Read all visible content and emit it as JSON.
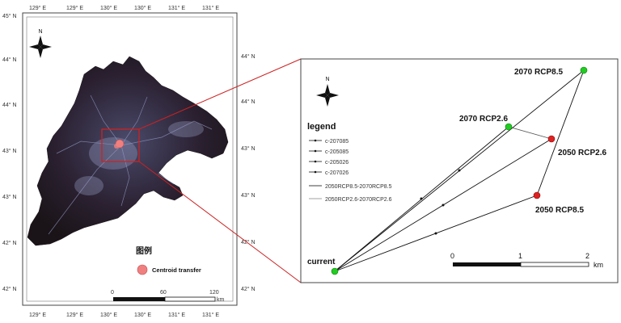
{
  "left_map": {
    "lon_top": [
      "129° E",
      "129° E",
      "130° E",
      "130° E",
      "131° E",
      "131° E"
    ],
    "lon_bottom": [
      "129° E",
      "129° E",
      "130° E",
      "130° E",
      "131° E",
      "131° E"
    ],
    "lat_left": [
      "45° N",
      "44° N",
      "44° N",
      "43° N",
      "43° N",
      "42° N",
      "42° N"
    ],
    "lat_right": [
      "44° N",
      "44° N",
      "43° N",
      "43° N",
      "42° N",
      "42° N"
    ],
    "north_label": "N",
    "legend_title": "图例",
    "legend_item": "Centroid transfer",
    "legend_color": "#f08080",
    "scale_ticks": [
      "0",
      "60",
      "120"
    ],
    "scale_unit": "km"
  },
  "right_panel": {
    "north_label": "N",
    "legend_title": "legend",
    "legend_items": [
      "c-207085",
      "c-205085",
      "c-205026",
      "c-207026",
      "2050RCP8.5-2070RCP8.5",
      "2050RCP2.6-2070RCP2.6"
    ],
    "points": [
      {
        "label": "current",
        "color": "#22cc22"
      },
      {
        "label": "2070 RCP8.5",
        "color": "#22cc22"
      },
      {
        "label": "2070 RCP2.6",
        "color": "#22cc22"
      },
      {
        "label": "2050 RCP2.6",
        "color": "#dd2222"
      },
      {
        "label": "2050 RCP8.5",
        "color": "#dd2222"
      }
    ],
    "scale_ticks": [
      "0",
      "1",
      "2"
    ],
    "scale_unit": "km"
  },
  "connector_color": "#cc2222"
}
